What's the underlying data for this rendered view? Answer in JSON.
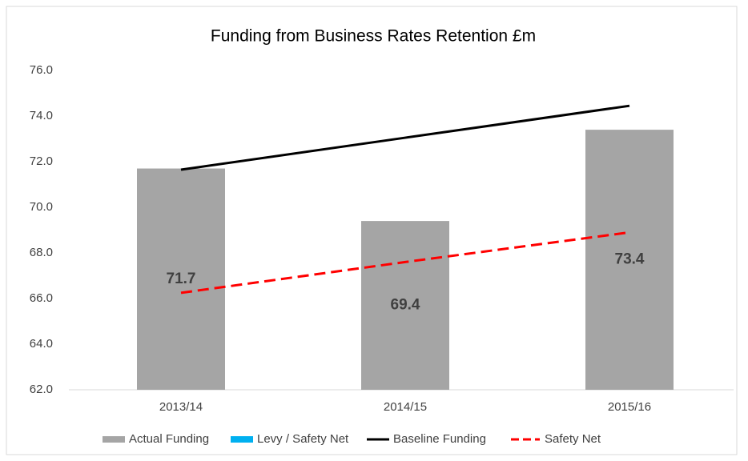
{
  "chart_data": {
    "type": "bar",
    "title": "Funding from Business Rates Retention £m",
    "categories": [
      "2013/14",
      "2014/15",
      "2015/16"
    ],
    "series": [
      {
        "name": "Actual Funding",
        "type": "bar",
        "color": "#a5a5a5",
        "values": [
          71.7,
          69.4,
          73.4
        ]
      },
      {
        "name": "Levy / Safety Net",
        "type": "bar",
        "color": "#00b0f0",
        "values": [
          0,
          0,
          0
        ]
      },
      {
        "name": "Baseline Funding",
        "type": "line",
        "color": "#000000",
        "values": [
          71.65,
          73.05,
          74.45
        ]
      },
      {
        "name": "Safety Net",
        "type": "line",
        "dash": true,
        "color": "#ff0000",
        "values": [
          66.25,
          67.6,
          68.9
        ]
      }
    ],
    "ylim": [
      62,
      76
    ],
    "yticks": [
      {
        "value": 62,
        "label": "62.0"
      },
      {
        "value": 64,
        "label": "64.0"
      },
      {
        "value": 66,
        "label": "66.0"
      },
      {
        "value": 68,
        "label": "68.0"
      },
      {
        "value": 70,
        "label": "70.0"
      },
      {
        "value": 72,
        "label": "72.0"
      },
      {
        "value": 74,
        "label": "74.0"
      },
      {
        "value": 76,
        "label": "76.0"
      }
    ],
    "grid": false,
    "legend": "bottom"
  }
}
